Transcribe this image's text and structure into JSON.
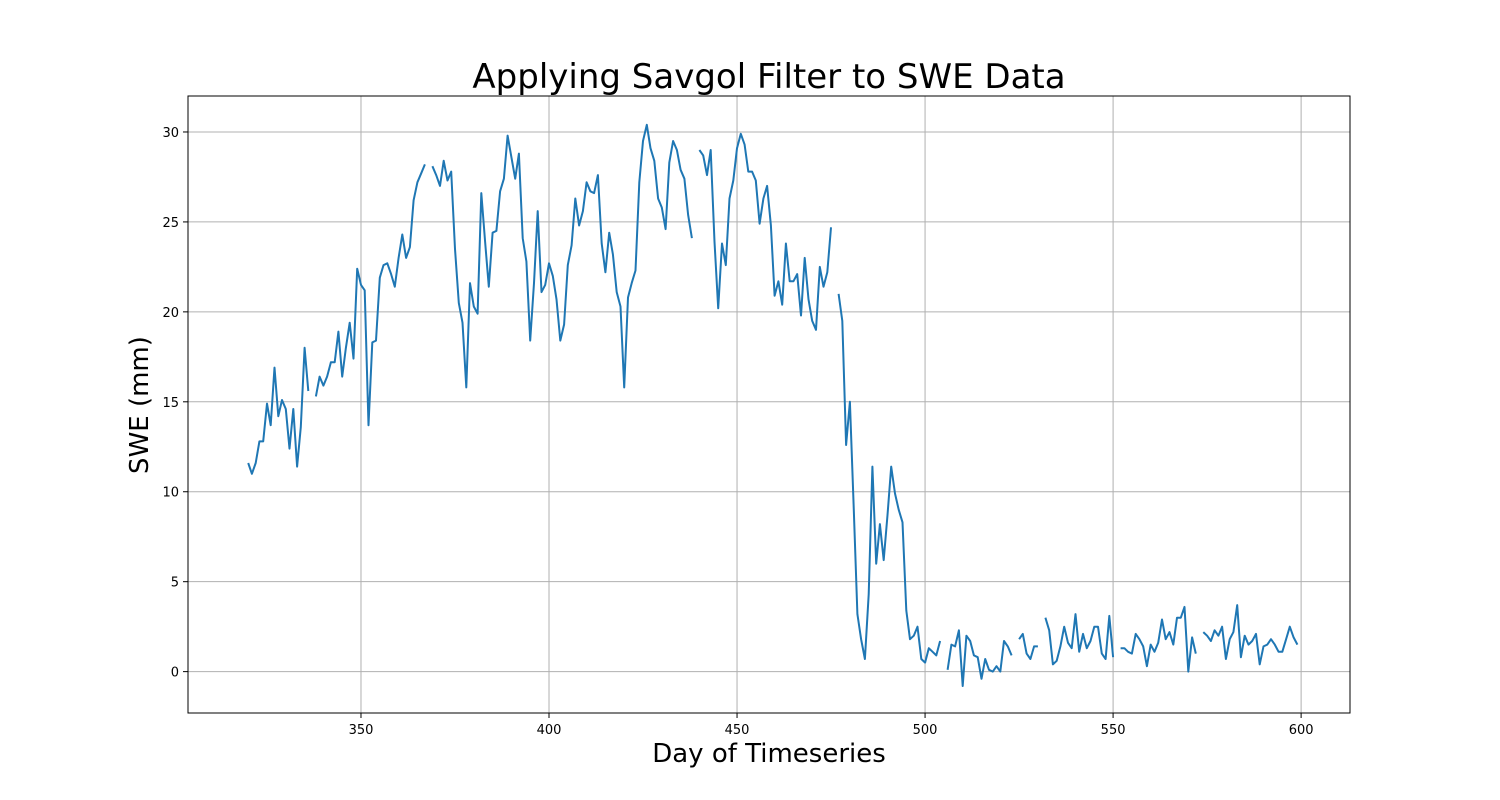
{
  "chart_data": {
    "type": "line",
    "title": "Applying Savgol Filter to SWE Data",
    "xlabel": "Day of Timeseries",
    "ylabel": "SWE (mm)",
    "xlim": [
      304,
      613
    ],
    "ylim": [
      -2.3,
      32.0
    ],
    "xticks": [
      350,
      400,
      450,
      500,
      550,
      600
    ],
    "yticks": [
      0,
      5,
      10,
      15,
      20,
      25,
      30
    ],
    "grid": true,
    "legend": "none",
    "colors": {
      "series": "#1f77b4"
    },
    "series": [
      {
        "segments": [
          [
            [
              320,
              11.6
            ],
            [
              321,
              11.0
            ],
            [
              322,
              11.6
            ],
            [
              323,
              12.8
            ],
            [
              324,
              12.8
            ],
            [
              325,
              14.9
            ],
            [
              326,
              13.7
            ],
            [
              327,
              16.9
            ],
            [
              328,
              14.2
            ],
            [
              329,
              15.1
            ],
            [
              330,
              14.6
            ],
            [
              331,
              12.4
            ],
            [
              332,
              14.6
            ],
            [
              333,
              11.4
            ],
            [
              334,
              13.6
            ],
            [
              335,
              18.0
            ],
            [
              336,
              15.6
            ]
          ],
          [
            [
              338,
              15.3
            ],
            [
              339,
              16.4
            ],
            [
              340,
              15.9
            ],
            [
              341,
              16.4
            ],
            [
              342,
              17.2
            ],
            [
              343,
              17.2
            ],
            [
              344,
              18.9
            ],
            [
              345,
              16.4
            ],
            [
              346,
              18.0
            ],
            [
              347,
              19.4
            ],
            [
              348,
              17.4
            ],
            [
              349,
              22.4
            ],
            [
              350,
              21.5
            ],
            [
              351,
              21.2
            ],
            [
              352,
              13.7
            ],
            [
              353,
              18.3
            ],
            [
              354,
              18.4
            ],
            [
              355,
              21.9
            ],
            [
              356,
              22.6
            ],
            [
              357,
              22.7
            ],
            [
              358,
              22.1
            ],
            [
              359,
              21.4
            ],
            [
              360,
              23.0
            ],
            [
              361,
              24.3
            ],
            [
              362,
              23.0
            ],
            [
              363,
              23.6
            ],
            [
              364,
              26.2
            ],
            [
              365,
              27.2
            ],
            [
              366,
              27.7
            ],
            [
              367,
              28.2
            ]
          ],
          [
            [
              369,
              28.1
            ],
            [
              370,
              27.6
            ],
            [
              371,
              27.0
            ],
            [
              372,
              28.4
            ],
            [
              373,
              27.3
            ],
            [
              374,
              27.8
            ],
            [
              375,
              23.5
            ],
            [
              376,
              20.5
            ],
            [
              377,
              19.4
            ],
            [
              378,
              15.8
            ],
            [
              379,
              21.6
            ],
            [
              380,
              20.3
            ],
            [
              381,
              19.9
            ],
            [
              382,
              26.6
            ],
            [
              383,
              23.9
            ],
            [
              384,
              21.4
            ],
            [
              385,
              24.4
            ],
            [
              386,
              24.5
            ],
            [
              387,
              26.7
            ],
            [
              388,
              27.4
            ],
            [
              389,
              29.8
            ],
            [
              390,
              28.6
            ],
            [
              391,
              27.4
            ],
            [
              392,
              28.8
            ],
            [
              393,
              24.1
            ],
            [
              394,
              22.8
            ],
            [
              395,
              18.4
            ],
            [
              396,
              21.6
            ],
            [
              397,
              25.6
            ],
            [
              398,
              21.1
            ],
            [
              399,
              21.5
            ],
            [
              400,
              22.7
            ],
            [
              401,
              22.0
            ],
            [
              402,
              20.7
            ],
            [
              403,
              18.4
            ],
            [
              404,
              19.3
            ],
            [
              405,
              22.6
            ],
            [
              406,
              23.7
            ],
            [
              407,
              26.3
            ],
            [
              408,
              24.8
            ],
            [
              409,
              25.6
            ],
            [
              410,
              27.2
            ],
            [
              411,
              26.7
            ],
            [
              412,
              26.6
            ],
            [
              413,
              27.6
            ],
            [
              414,
              23.8
            ],
            [
              415,
              22.2
            ],
            [
              416,
              24.4
            ],
            [
              417,
              23.2
            ],
            [
              418,
              21.1
            ],
            [
              419,
              20.3
            ],
            [
              420,
              15.8
            ],
            [
              421,
              20.8
            ],
            [
              422,
              21.6
            ],
            [
              423,
              22.3
            ],
            [
              424,
              27.2
            ],
            [
              425,
              29.5
            ],
            [
              426,
              30.4
            ],
            [
              427,
              29.1
            ],
            [
              428,
              28.4
            ],
            [
              429,
              26.3
            ],
            [
              430,
              25.8
            ],
            [
              431,
              24.6
            ],
            [
              432,
              28.3
            ],
            [
              433,
              29.5
            ],
            [
              434,
              29.0
            ],
            [
              435,
              27.9
            ],
            [
              436,
              27.4
            ],
            [
              437,
              25.4
            ],
            [
              438,
              24.1
            ]
          ],
          [
            [
              440,
              29.0
            ],
            [
              441,
              28.7
            ],
            [
              442,
              27.6
            ],
            [
              443,
              29.0
            ],
            [
              444,
              23.9
            ],
            [
              445,
              20.2
            ],
            [
              446,
              23.8
            ],
            [
              447,
              22.6
            ],
            [
              448,
              26.3
            ],
            [
              449,
              27.3
            ],
            [
              450,
              29.1
            ],
            [
              451,
              29.9
            ],
            [
              452,
              29.3
            ],
            [
              453,
              27.8
            ],
            [
              454,
              27.8
            ],
            [
              455,
              27.3
            ],
            [
              456,
              24.9
            ],
            [
              457,
              26.3
            ],
            [
              458,
              27.0
            ],
            [
              459,
              24.8
            ],
            [
              460,
              20.9
            ],
            [
              461,
              21.7
            ],
            [
              462,
              20.4
            ],
            [
              463,
              23.8
            ],
            [
              464,
              21.7
            ],
            [
              465,
              21.7
            ],
            [
              466,
              22.1
            ],
            [
              467,
              19.8
            ],
            [
              468,
              23.0
            ],
            [
              469,
              20.7
            ],
            [
              470,
              19.5
            ],
            [
              471,
              19.0
            ],
            [
              472,
              22.5
            ],
            [
              473,
              21.4
            ],
            [
              474,
              22.2
            ],
            [
              475,
              24.7
            ]
          ],
          [
            [
              477,
              21.0
            ],
            [
              478,
              19.5
            ],
            [
              479,
              12.6
            ],
            [
              480,
              15.0
            ],
            [
              481,
              9.3
            ],
            [
              482,
              3.2
            ],
            [
              483,
              1.8
            ],
            [
              484,
              0.7
            ],
            [
              485,
              4.3
            ],
            [
              486,
              11.4
            ],
            [
              487,
              6.0
            ],
            [
              488,
              8.2
            ],
            [
              489,
              6.2
            ],
            [
              490,
              8.7
            ],
            [
              491,
              11.4
            ],
            [
              492,
              9.9
            ],
            [
              493,
              9.0
            ],
            [
              494,
              8.3
            ],
            [
              495,
              3.4
            ],
            [
              496,
              1.8
            ],
            [
              497,
              2.0
            ],
            [
              498,
              2.5
            ],
            [
              499,
              0.7
            ],
            [
              500,
              0.5
            ],
            [
              501,
              1.3
            ],
            [
              502,
              1.1
            ],
            [
              503,
              0.9
            ],
            [
              504,
              1.7
            ]
          ],
          [
            [
              506,
              0.1
            ],
            [
              507,
              1.5
            ],
            [
              508,
              1.4
            ],
            [
              509,
              2.3
            ],
            [
              510,
              -0.8
            ],
            [
              511,
              2.0
            ],
            [
              512,
              1.7
            ],
            [
              513,
              0.9
            ],
            [
              514,
              0.8
            ],
            [
              515,
              -0.4
            ],
            [
              516,
              0.7
            ],
            [
              517,
              0.1
            ],
            [
              518,
              0.0
            ],
            [
              519,
              0.3
            ],
            [
              520,
              0.0
            ],
            [
              521,
              1.7
            ],
            [
              522,
              1.4
            ],
            [
              523,
              0.9
            ]
          ],
          [
            [
              525,
              1.8
            ],
            [
              526,
              2.1
            ],
            [
              527,
              1.0
            ],
            [
              528,
              0.7
            ],
            [
              529,
              1.4
            ],
            [
              530,
              1.4
            ]
          ],
          [
            [
              532,
              3.0
            ],
            [
              533,
              2.3
            ],
            [
              534,
              0.4
            ],
            [
              535,
              0.6
            ],
            [
              536,
              1.4
            ],
            [
              537,
              2.5
            ],
            [
              538,
              1.6
            ],
            [
              539,
              1.3
            ],
            [
              540,
              3.2
            ],
            [
              541,
              1.1
            ],
            [
              542,
              2.1
            ],
            [
              543,
              1.3
            ],
            [
              544,
              1.7
            ],
            [
              545,
              2.5
            ],
            [
              546,
              2.5
            ],
            [
              547,
              1.0
            ],
            [
              548,
              0.7
            ],
            [
              549,
              3.1
            ],
            [
              550,
              0.8
            ]
          ],
          [
            [
              552,
              1.3
            ],
            [
              553,
              1.3
            ],
            [
              554,
              1.1
            ],
            [
              555,
              1.0
            ],
            [
              556,
              2.1
            ],
            [
              557,
              1.8
            ],
            [
              558,
              1.4
            ],
            [
              559,
              0.3
            ],
            [
              560,
              1.5
            ],
            [
              561,
              1.1
            ],
            [
              562,
              1.6
            ],
            [
              563,
              2.9
            ],
            [
              564,
              1.8
            ],
            [
              565,
              2.2
            ],
            [
              566,
              1.5
            ],
            [
              567,
              3.0
            ],
            [
              568,
              3.0
            ],
            [
              569,
              3.6
            ],
            [
              570,
              0.0
            ],
            [
              571,
              1.9
            ],
            [
              572,
              1.0
            ]
          ],
          [
            [
              574,
              2.2
            ],
            [
              575,
              2.0
            ],
            [
              576,
              1.7
            ],
            [
              577,
              2.3
            ],
            [
              578,
              2.0
            ],
            [
              579,
              2.5
            ],
            [
              580,
              0.7
            ],
            [
              581,
              1.8
            ],
            [
              582,
              2.2
            ],
            [
              583,
              3.7
            ],
            [
              584,
              0.8
            ],
            [
              585,
              2.0
            ],
            [
              586,
              1.5
            ],
            [
              587,
              1.7
            ],
            [
              588,
              2.1
            ],
            [
              589,
              0.4
            ],
            [
              590,
              1.4
            ],
            [
              591,
              1.5
            ],
            [
              592,
              1.8
            ],
            [
              593,
              1.5
            ],
            [
              594,
              1.1
            ],
            [
              595,
              1.1
            ],
            [
              596,
              1.8
            ],
            [
              597,
              2.5
            ],
            [
              598,
              1.9
            ],
            [
              599,
              1.5
            ]
          ]
        ]
      }
    ]
  }
}
